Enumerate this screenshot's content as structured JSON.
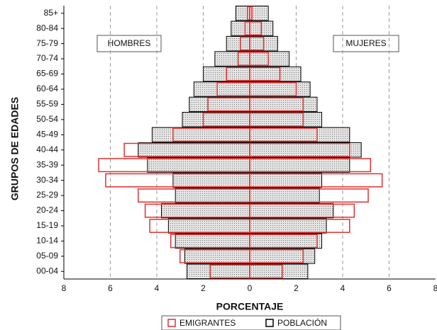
{
  "chart_data": {
    "type": "pyramid",
    "categories": [
      "00-04",
      "05-09",
      "10-14",
      "15-19",
      "20-24",
      "25-29",
      "30-34",
      "35-39",
      "40-44",
      "45-49",
      "50-54",
      "55-59",
      "60-64",
      "65-69",
      "70-74",
      "75-79",
      "80-84",
      "85+"
    ],
    "series": [
      {
        "name": "POBLACIÓN",
        "color": "#000000",
        "hombres": [
          -2.7,
          -2.8,
          -3.2,
          -3.5,
          -3.8,
          -3.2,
          -3.3,
          -4.4,
          -4.8,
          -4.2,
          -2.9,
          -2.6,
          -2.4,
          -2.0,
          -1.5,
          -1.0,
          -0.8,
          -0.6
        ],
        "mujeres": [
          2.5,
          2.8,
          3.1,
          3.3,
          3.6,
          3.0,
          3.1,
          4.3,
          4.8,
          4.3,
          3.1,
          2.9,
          2.6,
          2.2,
          1.7,
          1.2,
          1.0,
          0.8
        ]
      },
      {
        "name": "EMIGRANTES",
        "color": "#e03030",
        "hombres": [
          -1.7,
          -3.0,
          -3.4,
          -4.3,
          -4.5,
          -4.8,
          -6.2,
          -6.5,
          -5.4,
          -3.3,
          -2.0,
          -1.8,
          -1.4,
          -1.0,
          -0.5,
          -0.4,
          -0.2,
          -0.1
        ],
        "mujeres": [
          1.4,
          2.3,
          2.9,
          4.3,
          4.5,
          5.1,
          5.7,
          5.2,
          4.3,
          2.9,
          2.3,
          2.3,
          2.0,
          1.3,
          0.8,
          0.6,
          0.5,
          0.1
        ]
      }
    ],
    "xlabel": "PORCENTAJE",
    "ylabel": "GRUPOS DE EDADES",
    "annotations": [
      "HOMBRES",
      "MUJERES"
    ],
    "xlim": [
      -8,
      8
    ],
    "xticks": [
      {
        "value": -8,
        "label": "8"
      },
      {
        "value": -6,
        "label": "6"
      },
      {
        "value": -4,
        "label": "4"
      },
      {
        "value": -2,
        "label": "2"
      },
      0,
      2,
      4,
      6,
      8
    ],
    "grid": true
  }
}
